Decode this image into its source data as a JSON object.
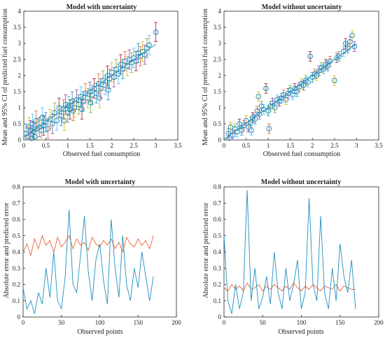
{
  "figure": {
    "panels": [
      {
        "id": "p1",
        "title": "Model with uncertainty"
      },
      {
        "id": "p2",
        "title": "Model without uncertainty"
      },
      {
        "id": "p3",
        "title": "Model with uncertainty"
      },
      {
        "id": "p4",
        "title": "Model without uncertainty"
      }
    ]
  },
  "colors": {
    "markers": "#1f8fbf",
    "fit_line": "#1f8fbf",
    "absolute_error": "#1f8fbf",
    "predicted_error": "#e8643a",
    "errorbars": [
      "#1f8fbf",
      "#e8643a",
      "#e0b020",
      "#8d44ad",
      "#77ac30",
      "#4dbeee",
      "#a2142f"
    ]
  },
  "chart_data": [
    {
      "type": "scatter",
      "title": "Model with uncertainty",
      "xlabel": "Observed fuel consumption",
      "ylabel": "Mean and 95% CI of predicted fuel consumption",
      "xlim": [
        0,
        3.5
      ],
      "ylim": [
        0,
        4
      ],
      "xticks": [
        "0",
        "0.5",
        "1",
        "1.5",
        "2",
        "2.5",
        "3",
        "3.5"
      ],
      "yticks": [
        "0",
        "0.5",
        "1",
        "1.5",
        "2",
        "2.5",
        "3",
        "3.5",
        "4"
      ],
      "grid": false,
      "points": [
        [
          0.05,
          0.2
        ],
        [
          0.1,
          0.1
        ],
        [
          0.12,
          0.4
        ],
        [
          0.15,
          0.3
        ],
        [
          0.18,
          0.05
        ],
        [
          0.2,
          0.5
        ],
        [
          0.22,
          0.25
        ],
        [
          0.25,
          0.1
        ],
        [
          0.28,
          0.6
        ],
        [
          0.3,
          0.35
        ],
        [
          0.35,
          0.4
        ],
        [
          0.4,
          0.3
        ],
        [
          0.42,
          0.7
        ],
        [
          0.45,
          0.45
        ],
        [
          0.5,
          0.55
        ],
        [
          0.55,
          0.35
        ],
        [
          0.6,
          0.65
        ],
        [
          0.65,
          0.5
        ],
        [
          0.7,
          0.85
        ],
        [
          0.75,
          0.6
        ],
        [
          0.8,
          1.0
        ],
        [
          0.85,
          0.75
        ],
        [
          0.9,
          0.95
        ],
        [
          0.92,
          0.6
        ],
        [
          0.95,
          1.1
        ],
        [
          1.0,
          0.85
        ],
        [
          1.02,
          1.05
        ],
        [
          1.05,
          0.95
        ],
        [
          1.1,
          1.2
        ],
        [
          1.12,
          0.9
        ],
        [
          1.15,
          1.0
        ],
        [
          1.2,
          1.25
        ],
        [
          1.25,
          1.1
        ],
        [
          1.3,
          1.35
        ],
        [
          1.32,
          0.95
        ],
        [
          1.35,
          1.2
        ],
        [
          1.4,
          1.45
        ],
        [
          1.45,
          1.3
        ],
        [
          1.5,
          1.5
        ],
        [
          1.52,
          1.15
        ],
        [
          1.55,
          1.4
        ],
        [
          1.6,
          1.6
        ],
        [
          1.65,
          1.45
        ],
        [
          1.7,
          1.75
        ],
        [
          1.72,
          1.3
        ],
        [
          1.75,
          1.6
        ],
        [
          1.8,
          1.85
        ],
        [
          1.85,
          1.7
        ],
        [
          1.9,
          2.0
        ],
        [
          1.92,
          1.55
        ],
        [
          1.95,
          1.9
        ],
        [
          2.0,
          2.1
        ],
        [
          2.05,
          1.95
        ],
        [
          2.1,
          2.2
        ],
        [
          2.15,
          2.05
        ],
        [
          2.2,
          2.35
        ],
        [
          2.25,
          2.2
        ],
        [
          2.3,
          2.45
        ],
        [
          2.35,
          2.3
        ],
        [
          2.4,
          2.5
        ],
        [
          2.45,
          2.4
        ],
        [
          2.5,
          2.55
        ],
        [
          2.55,
          2.45
        ],
        [
          2.6,
          2.7
        ],
        [
          2.65,
          2.6
        ],
        [
          2.7,
          2.75
        ],
        [
          2.75,
          2.65
        ],
        [
          2.8,
          2.85
        ],
        [
          2.85,
          2.95
        ],
        [
          3.0,
          3.35
        ]
      ],
      "ci_halfwidth": 0.3,
      "fit_line": [
        [
          0.0,
          0.08
        ],
        [
          3.0,
          2.97
        ]
      ]
    },
    {
      "type": "scatter",
      "title": "Model without uncertainty",
      "xlabel": "Observed fuel consumption",
      "ylabel": "Mean and 95% CI of predicted fuel consumption",
      "xlim": [
        0,
        3.5
      ],
      "ylim": [
        0,
        4
      ],
      "xticks": [
        "0",
        "0.5",
        "1",
        "1.5",
        "2",
        "2.5",
        "3",
        "3.5"
      ],
      "yticks": [
        "0",
        "0.5",
        "1",
        "1.5",
        "2",
        "2.5",
        "3",
        "3.5",
        "4"
      ],
      "grid": false,
      "points": [
        [
          0.1,
          0.2
        ],
        [
          0.12,
          0.05
        ],
        [
          0.15,
          0.4
        ],
        [
          0.2,
          0.15
        ],
        [
          0.25,
          0.35
        ],
        [
          0.3,
          0.25
        ],
        [
          0.35,
          0.5
        ],
        [
          0.4,
          0.3
        ],
        [
          0.45,
          0.45
        ],
        [
          0.5,
          0.6
        ],
        [
          0.55,
          0.4
        ],
        [
          0.6,
          0.55
        ],
        [
          0.62,
          0.3
        ],
        [
          0.65,
          0.7
        ],
        [
          0.7,
          0.65
        ],
        [
          0.75,
          0.9
        ],
        [
          0.78,
          1.35
        ],
        [
          0.8,
          0.8
        ],
        [
          0.85,
          1.05
        ],
        [
          0.9,
          0.95
        ],
        [
          0.95,
          1.6
        ],
        [
          1.0,
          0.9
        ],
        [
          1.02,
          0.35
        ],
        [
          1.05,
          1.05
        ],
        [
          1.1,
          1.15
        ],
        [
          1.15,
          1.0
        ],
        [
          1.2,
          1.25
        ],
        [
          1.25,
          1.2
        ],
        [
          1.3,
          1.3
        ],
        [
          1.35,
          1.4
        ],
        [
          1.4,
          1.25
        ],
        [
          1.45,
          1.45
        ],
        [
          1.5,
          1.55
        ],
        [
          1.55,
          1.4
        ],
        [
          1.6,
          1.6
        ],
        [
          1.65,
          1.5
        ],
        [
          1.7,
          1.65
        ],
        [
          1.75,
          1.75
        ],
        [
          1.8,
          1.7
        ],
        [
          1.85,
          1.85
        ],
        [
          1.9,
          1.8
        ],
        [
          1.95,
          2.6
        ],
        [
          2.0,
          1.95
        ],
        [
          2.05,
          2.05
        ],
        [
          2.1,
          2.0
        ],
        [
          2.15,
          2.15
        ],
        [
          2.2,
          2.25
        ],
        [
          2.25,
          2.2
        ],
        [
          2.3,
          2.35
        ],
        [
          2.35,
          2.3
        ],
        [
          2.4,
          2.45
        ],
        [
          2.5,
          1.85
        ],
        [
          2.55,
          2.55
        ],
        [
          2.6,
          2.6
        ],
        [
          2.7,
          2.75
        ],
        [
          2.75,
          3.0
        ],
        [
          2.8,
          2.85
        ],
        [
          2.85,
          3.05
        ],
        [
          2.9,
          3.25
        ],
        [
          2.95,
          2.9
        ]
      ],
      "ci_halfwidth": 0.15,
      "fit_line": [
        [
          0.0,
          0.02
        ],
        [
          3.0,
          2.99
        ]
      ]
    },
    {
      "type": "line",
      "title": "Model with uncertainty",
      "xlabel": "Observed points",
      "ylabel": "Absolute error and predicted error",
      "xlim": [
        0,
        200
      ],
      "ylim": [
        0,
        0.8
      ],
      "xticks": [
        "0",
        "50",
        "100",
        "150",
        "200"
      ],
      "yticks": [
        "0",
        "0.1",
        "0.2",
        "0.3",
        "0.4",
        "0.5",
        "0.6",
        "0.7",
        "0.8"
      ],
      "grid": false,
      "x": [
        0,
        5,
        10,
        15,
        20,
        25,
        30,
        35,
        40,
        45,
        50,
        55,
        60,
        65,
        70,
        75,
        80,
        85,
        90,
        95,
        100,
        105,
        110,
        115,
        120,
        125,
        130,
        135,
        140,
        145,
        150,
        155,
        160,
        165,
        170
      ],
      "series": [
        {
          "values": [
            0.18,
            0.05,
            0.1,
            0.02,
            0.15,
            0.08,
            0.3,
            0.12,
            0.4,
            0.1,
            0.05,
            0.25,
            0.66,
            0.2,
            0.15,
            0.38,
            0.62,
            0.28,
            0.1,
            0.35,
            0.45,
            0.22,
            0.08,
            0.6,
            0.3,
            0.12,
            0.5,
            0.2,
            0.1,
            0.3,
            0.18,
            0.4,
            0.25,
            0.1,
            0.25
          ]
        },
        {
          "values": [
            0.4,
            0.45,
            0.38,
            0.48,
            0.42,
            0.5,
            0.44,
            0.47,
            0.4,
            0.49,
            0.43,
            0.46,
            0.5,
            0.42,
            0.48,
            0.44,
            0.46,
            0.41,
            0.49,
            0.45,
            0.43,
            0.47,
            0.44,
            0.48,
            0.42,
            0.46,
            0.4,
            0.49,
            0.45,
            0.43,
            0.48,
            0.44,
            0.47,
            0.42,
            0.5
          ]
        }
      ]
    },
    {
      "type": "line",
      "title": "Model without uncertainty",
      "xlabel": "Observed points",
      "ylabel": "Absolute error and predicted error",
      "xlim": [
        0,
        200
      ],
      "ylim": [
        0,
        0.8
      ],
      "xticks": [
        "0",
        "50",
        "100",
        "150",
        "200"
      ],
      "yticks": [
        "0",
        "0.1",
        "0.2",
        "0.3",
        "0.4",
        "0.5",
        "0.6",
        "0.7",
        "0.8"
      ],
      "grid": false,
      "x": [
        0,
        5,
        10,
        15,
        20,
        25,
        30,
        35,
        40,
        45,
        50,
        55,
        60,
        65,
        70,
        75,
        80,
        85,
        90,
        95,
        100,
        105,
        110,
        115,
        120,
        125,
        130,
        135,
        140,
        145,
        150,
        155,
        160,
        165,
        170
      ],
      "series": [
        {
          "values": [
            0.5,
            0.1,
            0.02,
            0.2,
            0.05,
            0.15,
            0.78,
            0.1,
            0.3,
            0.05,
            0.12,
            0.25,
            0.08,
            0.4,
            0.15,
            0.05,
            0.3,
            0.1,
            0.2,
            0.35,
            0.05,
            0.15,
            0.73,
            0.2,
            0.1,
            0.62,
            0.15,
            0.05,
            0.3,
            0.1,
            0.45,
            0.25,
            0.15,
            0.35,
            0.05
          ]
        },
        {
          "values": [
            0.18,
            0.16,
            0.2,
            0.17,
            0.19,
            0.16,
            0.21,
            0.17,
            0.18,
            0.2,
            0.16,
            0.19,
            0.17,
            0.2,
            0.18,
            0.16,
            0.19,
            0.17,
            0.21,
            0.18,
            0.16,
            0.19,
            0.17,
            0.2,
            0.18,
            0.16,
            0.19,
            0.18,
            0.17,
            0.2,
            0.16,
            0.19,
            0.18,
            0.17,
            0.17
          ]
        }
      ]
    }
  ]
}
